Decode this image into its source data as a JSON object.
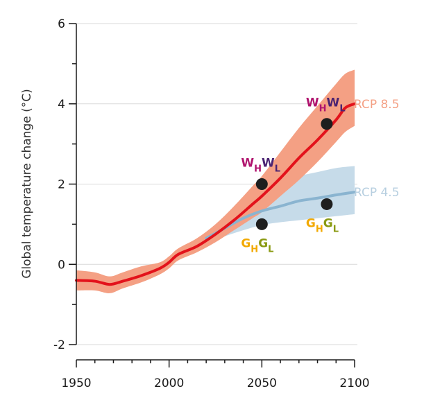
{
  "chart_data": {
    "type": "line",
    "title": "",
    "xlabel": "",
    "ylabel": "Global temperature change  (°C)",
    "xlim": [
      1950,
      2100
    ],
    "ylim": [
      -2,
      6
    ],
    "x_ticks_major": [
      1950,
      2000,
      2050,
      2100
    ],
    "x_tick_labels": [
      "1950",
      "2000",
      "2050",
      "2100"
    ],
    "x_ticks_minor_step": 10,
    "y_ticks_major": [
      -2,
      0,
      2,
      4,
      6
    ],
    "y_tick_labels": [
      "-2",
      "0",
      "2",
      "4",
      "6"
    ],
    "y_ticks_minor": [
      -1,
      1,
      3,
      5
    ],
    "grid": "horizontal at major y ticks",
    "legend": "inline labels at right end of series",
    "colors": {
      "rcp85_line": "#e3121b",
      "rcp85_band": "#f4a084",
      "rcp85_label": "#f4a084",
      "rcp45_line": "#8ab4d0",
      "rcp45_band": "#c6dbe9",
      "rcp45_label": "#b7cfe0",
      "grid": "#d9d9d9",
      "axis": "#1a1a1a",
      "marker": "#1e1e1e",
      "W_H": "#b0146e",
      "W_L": "#4a2372",
      "G_H": "#f2a900",
      "G_L": "#8a9a12"
    },
    "series": [
      {
        "name": "RCP 8.5",
        "mean": {
          "x": [
            1950,
            1960,
            1968,
            1975,
            1985,
            1995,
            2000,
            2005,
            2015,
            2025,
            2035,
            2045,
            2050,
            2060,
            2070,
            2080,
            2090,
            2095,
            2100
          ],
          "y": [
            -0.4,
            -0.42,
            -0.5,
            -0.42,
            -0.28,
            -0.1,
            0.05,
            0.25,
            0.45,
            0.75,
            1.1,
            1.5,
            1.7,
            2.15,
            2.65,
            3.1,
            3.6,
            3.9,
            4.0
          ]
        },
        "band_upper": {
          "x": [
            1950,
            1960,
            1968,
            1975,
            1985,
            1995,
            2000,
            2005,
            2015,
            2025,
            2035,
            2045,
            2050,
            2060,
            2070,
            2080,
            2090,
            2095,
            2100
          ],
          "y": [
            -0.15,
            -0.2,
            -0.3,
            -0.2,
            -0.05,
            0.05,
            0.2,
            0.4,
            0.65,
            1.0,
            1.45,
            1.95,
            2.2,
            2.8,
            3.4,
            3.95,
            4.5,
            4.75,
            4.85
          ]
        },
        "band_lower": {
          "x": [
            1950,
            1960,
            1968,
            1975,
            1985,
            1995,
            2000,
            2005,
            2015,
            2025,
            2035,
            2045,
            2050,
            2060,
            2070,
            2080,
            2090,
            2095,
            2100
          ],
          "y": [
            -0.65,
            -0.65,
            -0.72,
            -0.6,
            -0.45,
            -0.25,
            -0.1,
            0.1,
            0.3,
            0.55,
            0.85,
            1.15,
            1.3,
            1.7,
            2.1,
            2.55,
            3.05,
            3.3,
            3.45
          ]
        }
      },
      {
        "name": "RCP 4.5",
        "mean": {
          "x": [
            2020,
            2030,
            2040,
            2050,
            2060,
            2070,
            2080,
            2090,
            2100
          ],
          "y": [
            0.65,
            0.9,
            1.15,
            1.33,
            1.45,
            1.58,
            1.65,
            1.73,
            1.8
          ]
        },
        "band_upper": {
          "x": [
            2020,
            2030,
            2040,
            2050,
            2060,
            2070,
            2080,
            2090,
            2100
          ],
          "y": [
            0.7,
            1.1,
            1.5,
            1.85,
            2.05,
            2.2,
            2.3,
            2.4,
            2.45
          ]
        },
        "band_lower": {
          "x": [
            2020,
            2030,
            2040,
            2050,
            2060,
            2070,
            2080,
            2090,
            2100
          ],
          "y": [
            0.55,
            0.7,
            0.85,
            0.98,
            1.05,
            1.1,
            1.15,
            1.2,
            1.25
          ]
        }
      }
    ],
    "points": [
      {
        "x": 2050,
        "y": 2.0,
        "label": "W_H W_L",
        "position": "above"
      },
      {
        "x": 2085,
        "y": 3.5,
        "label": "W_H W_L",
        "position": "above"
      },
      {
        "x": 2050,
        "y": 1.0,
        "label": "G_H G_L",
        "position": "below"
      },
      {
        "x": 2085,
        "y": 1.5,
        "label": "G_H G_L",
        "position": "below"
      }
    ],
    "annotations": {
      "warm": {
        "main1": "W",
        "sub1": "H",
        "main2": "W",
        "sub2": "L"
      },
      "green": {
        "main1": "G",
        "sub1": "H",
        "main2": "G",
        "sub2": "L"
      }
    },
    "series_labels": [
      "RCP 8.5",
      "RCP 4.5"
    ]
  }
}
